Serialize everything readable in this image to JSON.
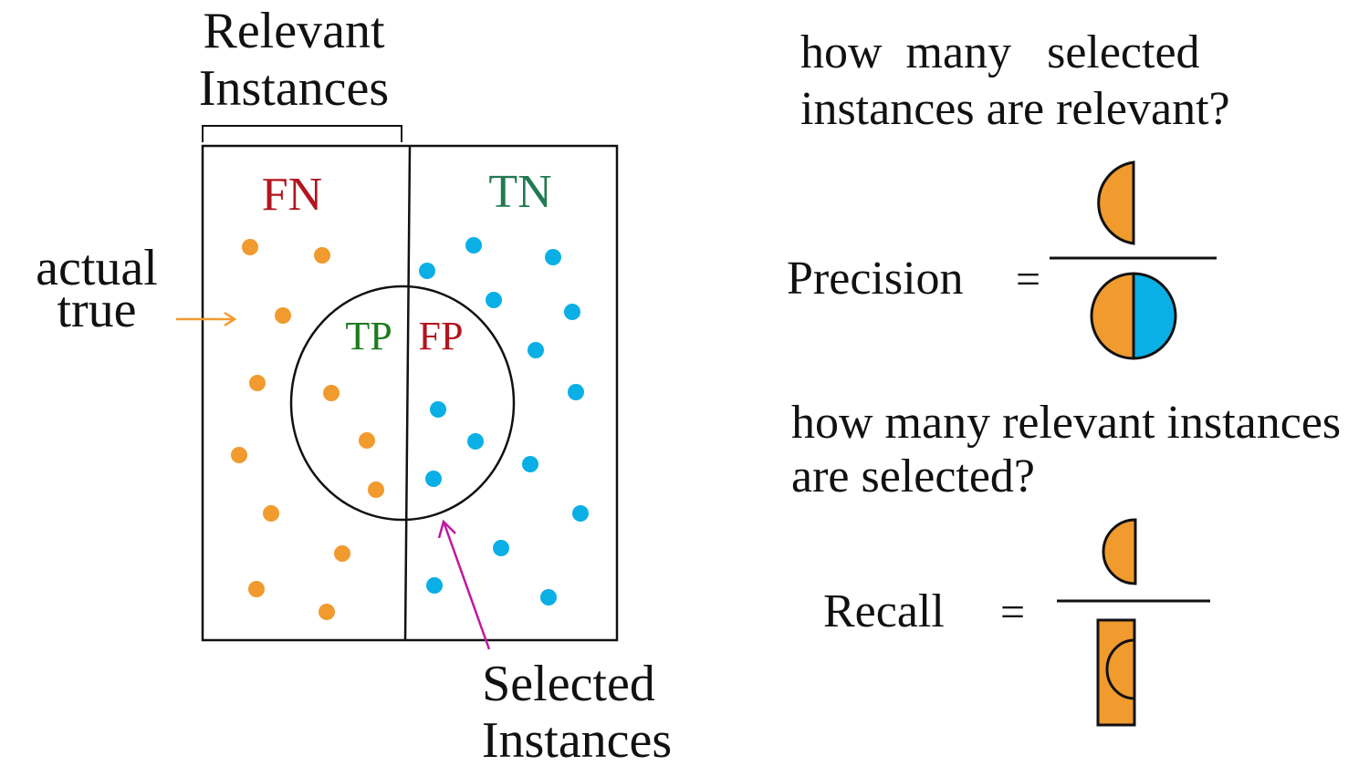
{
  "left_panel": {
    "relevant_label": [
      "Relevant",
      "Instances"
    ],
    "selected_label": [
      "Selected",
      "Instances"
    ],
    "actual_true_label": [
      "actual",
      "true"
    ],
    "quadrants": {
      "fn": "FN",
      "tn": "TN",
      "tp": "TP",
      "fp": "FP"
    }
  },
  "right_panel": {
    "precision_question": [
      "how  many   selected",
      "instances are relevant?"
    ],
    "precision_label": "Precision",
    "recall_question": [
      "how many relevant instances",
      "are selected?"
    ],
    "recall_label": "Recall",
    "equals": "="
  },
  "colors": {
    "relevant_dot": "#f19a2e",
    "irrelevant_dot": "#0aafe6",
    "false_label": "#b3141f",
    "true_label_tn": "#217a52",
    "true_label_tp": "#1f7a1f",
    "selected_arrow": "#c0189f",
    "actual_arrow": "#f19a2e",
    "outline": "#111111"
  },
  "icons": {
    "actual_true_arrow": "right-arrow-icon",
    "selected_arrow": "up-left-arrow-icon"
  }
}
